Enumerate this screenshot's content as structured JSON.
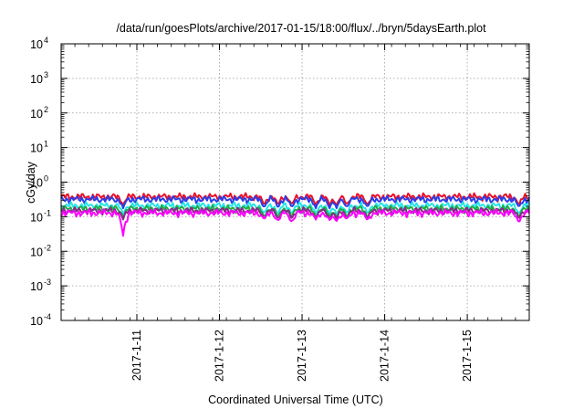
{
  "chart_data": {
    "type": "line",
    "title": "/data/run/goesPlots/archive/2017-01-15/18:00/flux/../bryn/5daysEarth.plot",
    "xlabel": "Coordinated Universal Time (UTC)",
    "ylabel": "cGy/day",
    "y_scale": "log",
    "ylim": [
      0.0001,
      10000
    ],
    "xlim": [
      "2017-01-10 02:00",
      "2017-01-15 18:00"
    ],
    "grid": true,
    "y_ticks": [
      {
        "value": 0.0001,
        "base": "10",
        "exp": "-4"
      },
      {
        "value": 0.001,
        "base": "10",
        "exp": "-3"
      },
      {
        "value": 0.01,
        "base": "10",
        "exp": "-2"
      },
      {
        "value": 0.1,
        "base": "10",
        "exp": "-1"
      },
      {
        "value": 1,
        "base": "10",
        "exp": "0"
      },
      {
        "value": 10,
        "base": "10",
        "exp": "1"
      },
      {
        "value": 100,
        "base": "10",
        "exp": "2"
      },
      {
        "value": 1000,
        "base": "10",
        "exp": "3"
      },
      {
        "value": 10000,
        "base": "10",
        "exp": "4"
      }
    ],
    "x_ticks": [
      {
        "date": "2017-01-11",
        "label": "2017-1-11"
      },
      {
        "date": "2017-01-12",
        "label": "2017-1-12"
      },
      {
        "date": "2017-01-13",
        "label": "2017-1-13"
      },
      {
        "date": "2017-01-14",
        "label": "2017-1-14"
      },
      {
        "date": "2017-01-15",
        "label": "2017-1-15"
      }
    ],
    "series": [
      {
        "color": "#e8102a",
        "baseline": 0.38
      },
      {
        "color": "#2a3ee8",
        "baseline": 0.32
      },
      {
        "color": "#22e6e6",
        "baseline": 0.21
      },
      {
        "color": "#22aa44",
        "baseline": 0.17
      },
      {
        "color": "#8a2a8a",
        "baseline": 0.15
      },
      {
        "color": "#ff00ff",
        "baseline": 0.13
      }
    ],
    "dips": [
      {
        "date": "2017-01-10 20:00",
        "value": 0.028
      },
      {
        "date": "2017-01-12 13:00",
        "value": 0.085
      },
      {
        "date": "2017-01-12 17:00",
        "value": 0.075
      },
      {
        "date": "2017-01-12 21:00",
        "value": 0.07
      },
      {
        "date": "2017-01-13 04:00",
        "value": 0.085
      },
      {
        "date": "2017-01-13 08:00",
        "value": 0.08
      },
      {
        "date": "2017-01-13 10:00",
        "value": 0.075
      },
      {
        "date": "2017-01-13 13:00",
        "value": 0.085
      },
      {
        "date": "2017-01-13 19:00",
        "value": 0.08
      },
      {
        "date": "2017-01-15 15:00",
        "value": 0.07
      }
    ]
  }
}
